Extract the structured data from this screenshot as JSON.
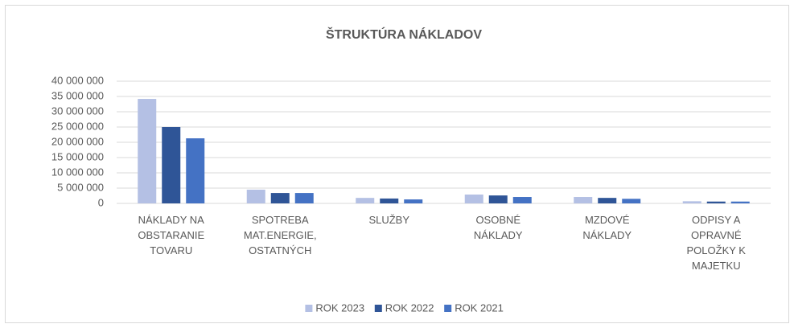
{
  "chart_data": {
    "type": "bar",
    "title": "ŠTRUKTÚRA NÁKLADOV",
    "categories": [
      "NÁKLADY NA OBSTARANIE TOVARU",
      "SPOTREBA MAT.ENERGIE, OSTATNÝCH",
      "SLUŽBY",
      "OSOBNÉ NÁKLADY",
      "MZDOVÉ NÁKLADY",
      "ODPISY A OPRAVNÉ POLOŽKY K MAJETKU"
    ],
    "series": [
      {
        "name": "ROK 2023",
        "color": "#b4c0e4",
        "values": [
          34200000,
          4500000,
          1800000,
          2900000,
          2100000,
          700000
        ]
      },
      {
        "name": "ROK 2022",
        "color": "#2f5597",
        "values": [
          25000000,
          3400000,
          1600000,
          2600000,
          1800000,
          600000
        ]
      },
      {
        "name": "ROK 2021",
        "color": "#4472c4",
        "values": [
          21300000,
          3400000,
          1300000,
          2100000,
          1500000,
          600000
        ]
      }
    ],
    "ylim": [
      0,
      40000000
    ],
    "yticks": [
      0,
      {
        "value": 5000000,
        "label": "5 000 000"
      },
      {
        "value": 10000000,
        "label": "10 000 000"
      },
      {
        "value": 15000000,
        "label": "15 000 000"
      },
      {
        "value": 20000000,
        "label": "20 000 000"
      },
      {
        "value": 25000000,
        "label": "25 000 000"
      },
      {
        "value": 30000000,
        "label": "30 000 000"
      },
      {
        "value": 35000000,
        "label": "35 000 000"
      },
      {
        "value": 40000000,
        "label": "40 000 000"
      }
    ],
    "grid": true,
    "legend": "bottom"
  }
}
